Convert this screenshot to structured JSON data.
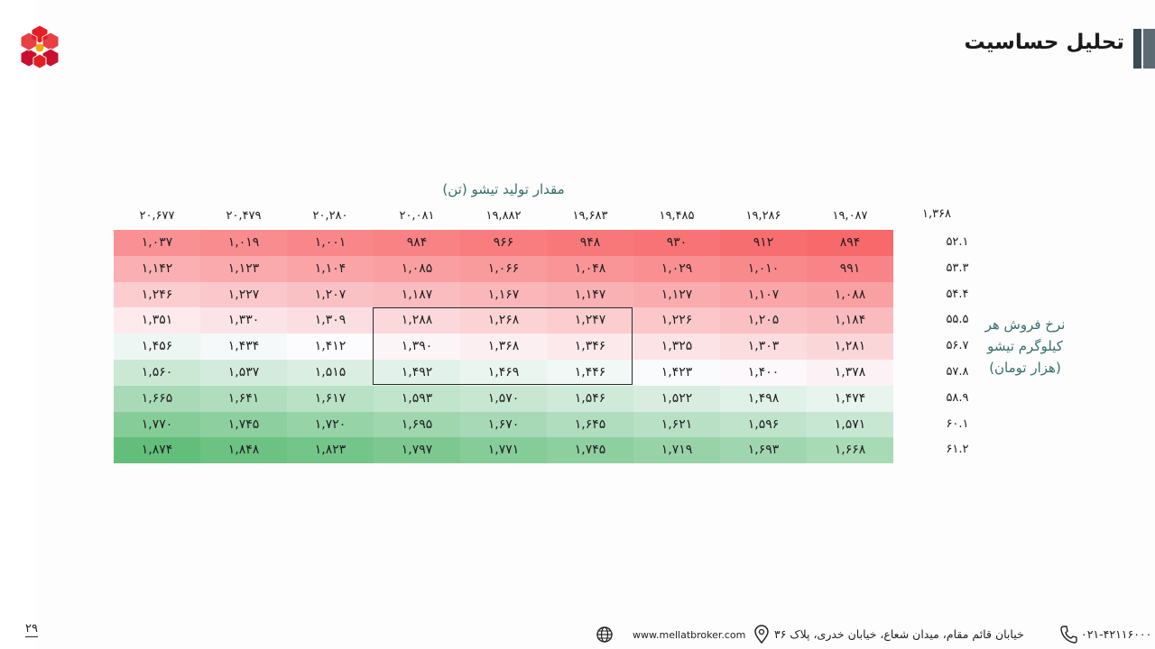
{
  "header": {
    "title": "تحلیل حساسیت"
  },
  "table": {
    "x_axis_title": "مقدار تولید تیشو (تن)",
    "y_axis_title": [
      "نرخ فروش هر",
      "کیلوگرم تیشو",
      "(هزار تومان)"
    ],
    "corner_value": "۱,۳۶۸",
    "columns": [
      "۲۰,۶۷۷",
      "۲۰,۴۷۹",
      "۲۰,۲۸۰",
      "۲۰,۰۸۱",
      "۱۹,۸۸۲",
      "۱۹,۶۸۳",
      "۱۹,۴۸۵",
      "۱۹,۲۸۶",
      "۱۹,۰۸۷"
    ],
    "rows": [
      {
        "label": "۵۲.۱",
        "values": [
          "۱,۰۳۷",
          "۱,۰۱۹",
          "۱,۰۰۱",
          "۹۸۴",
          "۹۶۶",
          "۹۴۸",
          "۹۳۰",
          "۹۱۲",
          "۸۹۴"
        ]
      },
      {
        "label": "۵۳.۳",
        "values": [
          "۱,۱۴۲",
          "۱,۱۲۳",
          "۱,۱۰۴",
          "۱,۰۸۵",
          "۱,۰۶۶",
          "۱,۰۴۸",
          "۱,۰۲۹",
          "۱,۰۱۰",
          "۹۹۱"
        ]
      },
      {
        "label": "۵۴.۴",
        "values": [
          "۱,۲۴۶",
          "۱,۲۲۷",
          "۱,۲۰۷",
          "۱,۱۸۷",
          "۱,۱۶۷",
          "۱,۱۴۷",
          "۱,۱۲۷",
          "۱,۱۰۷",
          "۱,۰۸۸"
        ]
      },
      {
        "label": "۵۵.۵",
        "values": [
          "۱,۳۵۱",
          "۱,۳۳۰",
          "۱,۳۰۹",
          "۱,۲۸۸",
          "۱,۲۶۸",
          "۱,۲۴۷",
          "۱,۲۲۶",
          "۱,۲۰۵",
          "۱,۱۸۴"
        ]
      },
      {
        "label": "۵۶.۷",
        "values": [
          "۱,۴۵۶",
          "۱,۴۳۴",
          "۱,۴۱۲",
          "۱,۳۹۰",
          "۱,۳۶۸",
          "۱,۳۴۶",
          "۱,۳۲۵",
          "۱,۳۰۳",
          "۱,۲۸۱"
        ]
      },
      {
        "label": "۵۷.۸",
        "values": [
          "۱,۵۶۰",
          "۱,۵۳۷",
          "۱,۵۱۵",
          "۱,۴۹۲",
          "۱,۴۶۹",
          "۱,۴۴۶",
          "۱,۴۲۳",
          "۱,۴۰۰",
          "۱,۳۷۸"
        ]
      },
      {
        "label": "۵۸.۹",
        "values": [
          "۱,۶۶۵",
          "۱,۶۴۱",
          "۱,۶۱۷",
          "۱,۵۹۳",
          "۱,۵۷۰",
          "۱,۵۴۶",
          "۱,۵۲۲",
          "۱,۴۹۸",
          "۱,۴۷۴"
        ]
      },
      {
        "label": "۶۰.۱",
        "values": [
          "۱,۷۷۰",
          "۱,۷۴۵",
          "۱,۷۲۰",
          "۱,۶۹۵",
          "۱,۶۷۰",
          "۱,۶۴۵",
          "۱,۶۲۱",
          "۱,۵۹۶",
          "۱,۵۷۱"
        ]
      },
      {
        "label": "۶۱.۲",
        "values": [
          "۱,۸۷۴",
          "۱,۸۴۸",
          "۱,۸۲۳",
          "۱,۷۹۷",
          "۱,۷۷۱",
          "۱,۷۴۵",
          "۱,۷۱۹",
          "۱,۶۹۳",
          "۱,۶۶۸"
        ]
      }
    ],
    "heat_colors": {
      "low": "#f8696b",
      "mid": "#fcfcff",
      "high": "#63be7b"
    },
    "heat_range": [
      894,
      1874
    ]
  },
  "footer": {
    "page_number": "۲۹",
    "website": "www.mellatbroker.com",
    "address": "خیابان قائم مقام، میدان شعاع، خیابان خدری، پلاک ۳۶",
    "phone": "۰۲۱-۴۲۱۱۶۰۰۰"
  }
}
